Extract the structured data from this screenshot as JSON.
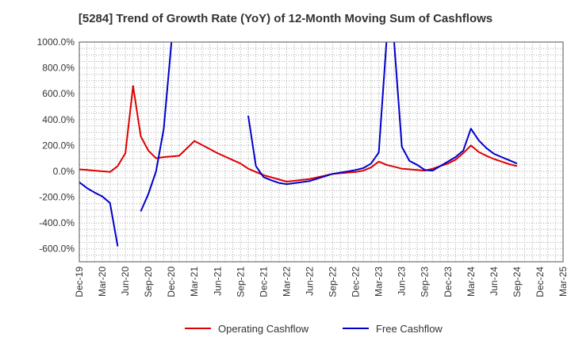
{
  "chart_data": {
    "type": "line",
    "title": "[5284]  Trend of Growth Rate (YoY) of 12-Month Moving Sum of Cashflows",
    "xlabel": "",
    "ylabel": "",
    "ylim": [
      -700,
      1000
    ],
    "yticks": [
      1000,
      800,
      600,
      400,
      200,
      0,
      -200,
      -400,
      -600
    ],
    "ytick_labels": [
      "1000.0%",
      "800.0%",
      "600.0%",
      "400.0%",
      "200.0%",
      "0.0%",
      "-200.0%",
      "-400.0%",
      "-600.0%"
    ],
    "x_start": "Dec-19",
    "x_end": "Mar-25",
    "xtick_labels": [
      "Dec-19",
      "Mar-20",
      "Jun-20",
      "Sep-20",
      "Dec-20",
      "Mar-21",
      "Jun-21",
      "Sep-21",
      "Dec-21",
      "Mar-22",
      "Jun-22",
      "Sep-22",
      "Dec-22",
      "Mar-23",
      "Jun-23",
      "Sep-23",
      "Dec-23",
      "Mar-24",
      "Jun-24",
      "Sep-24",
      "Dec-24",
      "Mar-25"
    ],
    "grid": true,
    "legend_position": "bottom",
    "series": [
      {
        "name": "Operating Cashflow",
        "color": "#dd0000",
        "points": [
          [
            "Dec-19",
            15
          ],
          [
            "Jan-20",
            10
          ],
          [
            "Feb-20",
            5
          ],
          [
            "Mar-20",
            0
          ],
          [
            "Apr-20",
            -5
          ],
          [
            "May-20",
            40
          ],
          [
            "Jun-20",
            140
          ],
          [
            "Jul-20",
            660
          ],
          [
            "Aug-20",
            270
          ],
          [
            "Sep-20",
            160
          ],
          [
            "Oct-20",
            100
          ],
          [
            "Nov-20",
            110
          ],
          [
            "Dec-20",
            115
          ],
          [
            "Jan-21",
            120
          ],
          [
            "Mar-21",
            235
          ],
          [
            "Jun-21",
            140
          ],
          [
            "Sep-21",
            60
          ],
          [
            "Oct-21",
            20
          ],
          [
            "Nov-21",
            -5
          ],
          [
            "Dec-21",
            -30
          ],
          [
            "Mar-22",
            -80
          ],
          [
            "Jun-22",
            -60
          ],
          [
            "Sep-22",
            -20
          ],
          [
            "Dec-22",
            -5
          ],
          [
            "Jan-23",
            5
          ],
          [
            "Feb-23",
            30
          ],
          [
            "Mar-23",
            75
          ],
          [
            "Apr-23",
            50
          ],
          [
            "May-23",
            35
          ],
          [
            "Jun-23",
            20
          ],
          [
            "Sep-23",
            5
          ],
          [
            "Oct-23",
            20
          ],
          [
            "Nov-23",
            40
          ],
          [
            "Dec-23",
            60
          ],
          [
            "Jan-24",
            90
          ],
          [
            "Feb-24",
            140
          ],
          [
            "Mar-24",
            200
          ],
          [
            "Apr-24",
            150
          ],
          [
            "May-24",
            120
          ],
          [
            "Jun-24",
            95
          ],
          [
            "Jul-24",
            75
          ],
          [
            "Aug-24",
            55
          ],
          [
            "Sep-24",
            40
          ]
        ]
      },
      {
        "name": "Free Cashflow",
        "color": "#0000cc",
        "segments": [
          [
            [
              "Dec-19",
              -85
            ],
            [
              "Jan-20",
              -130
            ],
            [
              "Feb-20",
              -165
            ],
            [
              "Mar-20",
              -195
            ],
            [
              "Apr-20",
              -245
            ],
            [
              "May-20",
              -580
            ]
          ],
          [
            [
              "Aug-20",
              -310
            ],
            [
              "Sep-20",
              -175
            ],
            [
              "Oct-20",
              0
            ],
            [
              "Nov-20",
              330
            ],
            [
              "Dec-20",
              1000
            ]
          ],
          [
            [
              "Oct-21",
              430
            ],
            [
              "Nov-21",
              40
            ],
            [
              "Dec-21",
              -45
            ],
            [
              "Jan-22",
              -70
            ],
            [
              "Feb-22",
              -90
            ],
            [
              "Mar-22",
              -100
            ],
            [
              "Jun-22",
              -75
            ],
            [
              "Sep-22",
              -20
            ],
            [
              "Dec-22",
              10
            ],
            [
              "Jan-23",
              25
            ],
            [
              "Feb-23",
              60
            ],
            [
              "Mar-23",
              145
            ],
            [
              "Apr-23",
              1000
            ]
          ],
          [
            [
              "May-23",
              1000
            ],
            [
              "Jun-23",
              190
            ],
            [
              "Jul-23",
              80
            ],
            [
              "Aug-23",
              50
            ],
            [
              "Sep-23",
              10
            ],
            [
              "Oct-23",
              5
            ],
            [
              "Nov-23",
              40
            ],
            [
              "Dec-23",
              75
            ],
            [
              "Jan-24",
              110
            ],
            [
              "Feb-24",
              160
            ],
            [
              "Mar-24",
              330
            ],
            [
              "Apr-24",
              240
            ],
            [
              "May-24",
              180
            ],
            [
              "Jun-24",
              135
            ],
            [
              "Jul-24",
              110
            ],
            [
              "Aug-24",
              85
            ],
            [
              "Sep-24",
              60
            ]
          ]
        ]
      }
    ]
  }
}
